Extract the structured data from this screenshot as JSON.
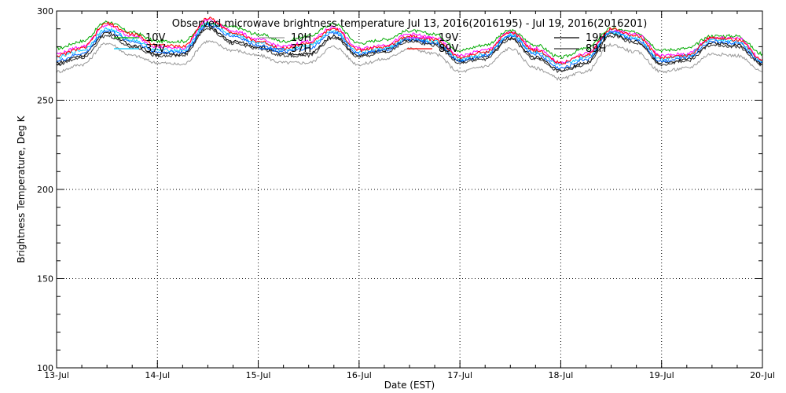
{
  "chart_data": {
    "type": "line",
    "title": "Observed microwave brightness temperature Jul 13, 2016(2016195) - Jul 19, 2016(2016201)",
    "xlabel": "Date (EST)",
    "ylabel": "Brightness Temperature, Deg K",
    "xlim": [
      "2016-07-13",
      "2016-07-20"
    ],
    "ylim": [
      100,
      300
    ],
    "x_ticks": [
      "13-Jul",
      "14-Jul",
      "15-Jul",
      "16-Jul",
      "17-Jul",
      "18-Jul",
      "19-Jul",
      "20-Jul"
    ],
    "y_ticks": [
      100,
      150,
      200,
      250,
      300
    ],
    "grid": true,
    "legend_position": "top",
    "times": [
      "2016-07-13 00:00",
      "2016-07-13 06:00",
      "2016-07-13 12:00",
      "2016-07-13 18:00",
      "2016-07-14 00:00",
      "2016-07-14 06:00",
      "2016-07-14 12:00",
      "2016-07-14 18:00",
      "2016-07-15 00:00",
      "2016-07-15 06:00",
      "2016-07-15 12:00",
      "2016-07-15 18:00",
      "2016-07-16 00:00",
      "2016-07-16 06:00",
      "2016-07-16 12:00",
      "2016-07-16 18:00",
      "2016-07-17 00:00",
      "2016-07-17 06:00",
      "2016-07-17 12:00",
      "2016-07-17 18:00",
      "2016-07-18 00:00",
      "2016-07-18 06:00",
      "2016-07-18 12:00",
      "2016-07-18 18:00",
      "2016-07-19 00:00",
      "2016-07-19 06:00",
      "2016-07-19 12:00",
      "2016-07-19 18:00",
      "2016-07-20 00:00"
    ],
    "series": [
      {
        "name": "10V",
        "color": "#00aa00",
        "values": [
          279,
          283,
          294,
          288,
          283,
          283,
          293,
          291,
          287,
          283,
          286,
          293,
          282,
          284,
          289,
          287,
          278,
          281,
          289,
          281,
          274,
          279,
          290,
          288,
          278,
          279,
          286,
          286,
          276
        ]
      },
      {
        "name": "10H",
        "color": "#999999",
        "values": [
          266,
          270,
          282,
          275,
          271,
          270,
          283,
          278,
          275,
          271,
          271,
          280,
          270,
          273,
          279,
          276,
          266,
          269,
          279,
          268,
          262,
          266,
          281,
          277,
          266,
          268,
          276,
          275,
          266
        ]
      },
      {
        "name": "19V",
        "color": "#ff00ff",
        "values": [
          276,
          280,
          292,
          286,
          280,
          279,
          295,
          289,
          284,
          280,
          283,
          291,
          279,
          281,
          287,
          285,
          275,
          278,
          288,
          279,
          271,
          276,
          289,
          287,
          275,
          276,
          285,
          285,
          273
        ]
      },
      {
        "name": "19H",
        "color": "#000000",
        "values": [
          271,
          275,
          288,
          281,
          276,
          276,
          291,
          283,
          280,
          276,
          276,
          286,
          275,
          278,
          284,
          282,
          272,
          274,
          285,
          274,
          267,
          271,
          287,
          283,
          271,
          273,
          282,
          281,
          271
        ]
      },
      {
        "name": "37V",
        "color": "#00ccff",
        "values": [
          274,
          278,
          290,
          284,
          278,
          278,
          293,
          287,
          282,
          278,
          281,
          289,
          277,
          279,
          285,
          283,
          273,
          276,
          287,
          277,
          270,
          274,
          288,
          285,
          273,
          275,
          284,
          283,
          272
        ]
      },
      {
        "name": "37H",
        "color": "#0066ff",
        "values": [
          272,
          276,
          289,
          283,
          277,
          277,
          292,
          286,
          281,
          277,
          279,
          288,
          276,
          278,
          284,
          282,
          272,
          275,
          286,
          276,
          268,
          273,
          288,
          284,
          272,
          274,
          283,
          282,
          271
        ]
      },
      {
        "name": "89V",
        "color": "#ff0000",
        "values": [
          275,
          279,
          293,
          287,
          281,
          280,
          296,
          288,
          283,
          279,
          282,
          290,
          278,
          280,
          286,
          284,
          274,
          277,
          288,
          278,
          271,
          275,
          290,
          286,
          274,
          275,
          285,
          284,
          273
        ]
      },
      {
        "name": "89H",
        "color": "#333333",
        "values": [
          270,
          274,
          286,
          280,
          275,
          275,
          290,
          282,
          279,
          275,
          275,
          285,
          274,
          277,
          283,
          281,
          271,
          273,
          284,
          273,
          266,
          270,
          286,
          282,
          270,
          272,
          281,
          280,
          270
        ]
      }
    ]
  }
}
